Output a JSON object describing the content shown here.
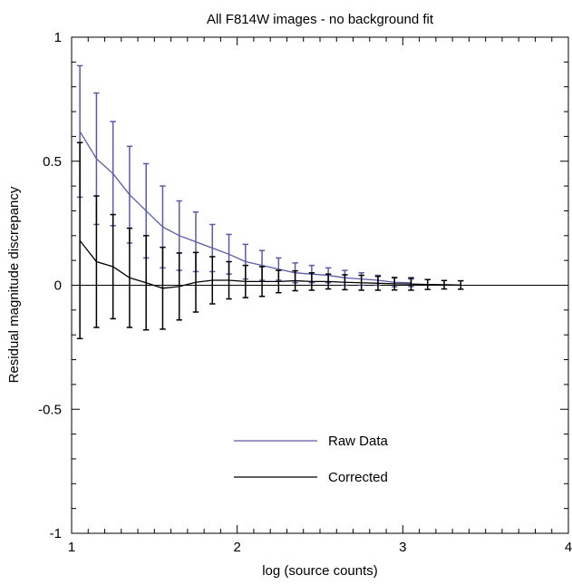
{
  "chart_data": {
    "type": "line",
    "title": "All F814W images - no background fit",
    "xlabel": "log (source counts)",
    "ylabel": "Residual magnitude discrepancy",
    "xlim": [
      1,
      4
    ],
    "ylim": [
      -1,
      1
    ],
    "x_ticks": [
      1,
      2,
      3,
      4
    ],
    "x_tick_labels": [
      "1",
      "2",
      "3",
      "4"
    ],
    "y_ticks": [
      -1,
      -0.5,
      0,
      0.5,
      1
    ],
    "y_tick_labels": [
      "-1",
      "-0.5",
      "0",
      "0.5",
      "1"
    ],
    "grid": false,
    "zero_line": true,
    "legend_placement": "bottom-center",
    "series": [
      {
        "name": "Raw Data",
        "color": "#5a5aa8",
        "x": [
          1.05,
          1.15,
          1.25,
          1.35,
          1.45,
          1.55,
          1.65,
          1.75,
          1.85,
          1.95,
          2.05,
          2.15,
          2.25,
          2.35,
          2.45,
          2.55,
          2.65,
          2.75,
          2.85,
          2.95,
          3.05
        ],
        "values": [
          0.62,
          0.51,
          0.45,
          0.365,
          0.3,
          0.235,
          0.2,
          0.175,
          0.15,
          0.125,
          0.095,
          0.08,
          0.065,
          0.05,
          0.045,
          0.04,
          0.03,
          0.025,
          0.02,
          0.012,
          0.01
        ],
        "error": [
          0.265,
          0.265,
          0.21,
          0.195,
          0.19,
          0.165,
          0.14,
          0.12,
          0.095,
          0.08,
          0.07,
          0.06,
          0.045,
          0.04,
          0.035,
          0.03,
          0.03,
          0.025,
          0.02,
          0.018,
          0.015
        ]
      },
      {
        "name": "Corrected",
        "color": "#000000",
        "x": [
          1.05,
          1.15,
          1.25,
          1.35,
          1.45,
          1.55,
          1.65,
          1.75,
          1.85,
          1.95,
          2.05,
          2.15,
          2.25,
          2.35,
          2.45,
          2.55,
          2.65,
          2.75,
          2.85,
          2.95,
          3.05,
          3.15,
          3.25,
          3.35
        ],
        "values": [
          0.18,
          0.095,
          0.075,
          0.03,
          0.01,
          -0.012,
          -0.005,
          0.012,
          0.02,
          0.02,
          0.015,
          0.015,
          0.015,
          0.018,
          0.015,
          0.015,
          0.012,
          0.01,
          0.008,
          0.006,
          0.005,
          0.003,
          0.002,
          0.001
        ],
        "error": [
          0.395,
          0.265,
          0.21,
          0.2,
          0.19,
          0.165,
          0.135,
          0.12,
          0.095,
          0.075,
          0.065,
          0.06,
          0.045,
          0.04,
          0.035,
          0.03,
          0.03,
          0.03,
          0.028,
          0.025,
          0.025,
          0.02,
          0.017,
          0.017
        ]
      }
    ]
  }
}
